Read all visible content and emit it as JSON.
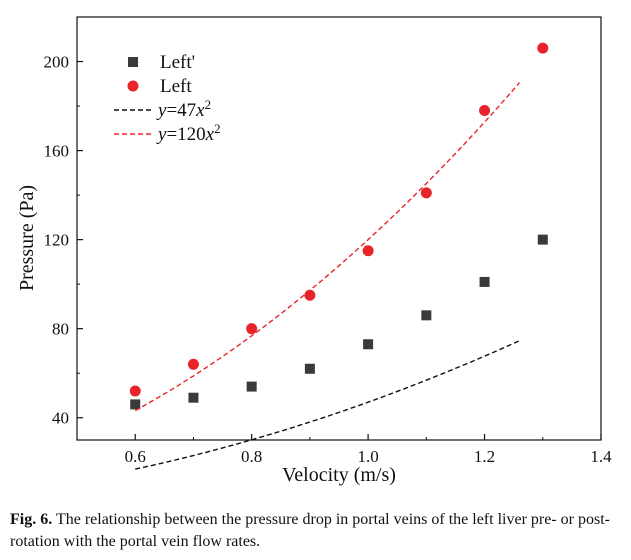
{
  "chart_data": {
    "type": "scatter",
    "xlabel": "Velocity (m/s)",
    "ylabel": "Pressure (Pa)",
    "xlim": [
      0.5,
      1.4
    ],
    "ylim": [
      30,
      220
    ],
    "x_ticks": [
      0.6,
      0.8,
      1.0,
      1.2,
      1.4
    ],
    "x_tick_labels": [
      "0.6",
      "0.8",
      "1.0",
      "1.2",
      "1.4"
    ],
    "y_ticks": [
      40,
      80,
      120,
      160,
      200
    ],
    "y_tick_labels": [
      "40",
      "80",
      "120",
      "160",
      "200"
    ],
    "grid": false,
    "legend_position": "top-left",
    "series": [
      {
        "name": "Left'",
        "kind": "marker",
        "marker": "square",
        "color": "#3a3a3a",
        "x": [
          0.6,
          0.7,
          0.8,
          0.9,
          1.0,
          1.1,
          1.2,
          1.3
        ],
        "y": [
          46,
          49,
          54,
          62,
          73,
          86,
          101,
          120
        ]
      },
      {
        "name": "Left",
        "kind": "marker",
        "marker": "circle",
        "color": "#e8242b",
        "x": [
          0.6,
          0.7,
          0.8,
          0.9,
          1.0,
          1.1,
          1.2,
          1.3
        ],
        "y": [
          52,
          64,
          80,
          95,
          115,
          141,
          178,
          206
        ]
      },
      {
        "name": "y=47x²",
        "legend_parts": {
          "var": "y",
          "rest": "=47",
          "xvar": "x",
          "sup": "2"
        },
        "kind": "fit",
        "coefficient": 47,
        "x_range": [
          0.6,
          1.26
        ],
        "color": "#111111",
        "dash": "dashed"
      },
      {
        "name": "y=120x²",
        "legend_parts": {
          "var": "y",
          "rest": "=120",
          "xvar": "x",
          "sup": "2"
        },
        "kind": "fit",
        "coefficient": 120,
        "x_range": [
          0.6,
          1.26
        ],
        "color": "#e8242b",
        "dash": "dashed"
      }
    ]
  },
  "caption": {
    "label": "Fig. 6.",
    "text": "The relationship between the pressure drop in portal veins of the left liver pre- or post-rotation with the portal vein flow rates."
  }
}
